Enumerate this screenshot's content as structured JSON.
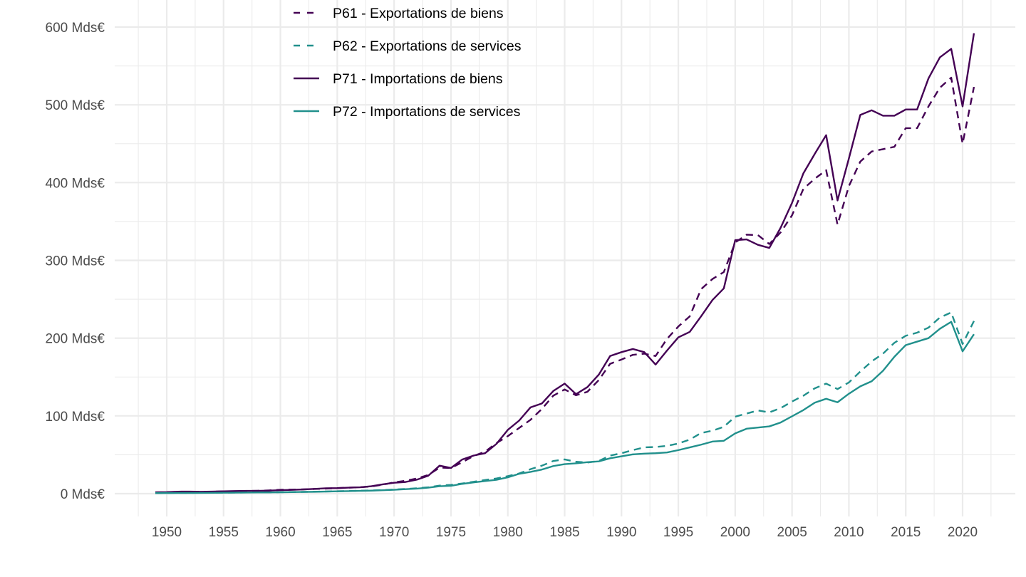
{
  "chart_data": {
    "type": "line",
    "title": "",
    "xlabel": "",
    "ylabel": "",
    "xlim": [
      1945.4,
      2024.6
    ],
    "ylim": [
      -30,
      618
    ],
    "grid": true,
    "legend_position": "top-left-inside",
    "x_ticks": [
      1950,
      1955,
      1960,
      1965,
      1970,
      1975,
      1980,
      1985,
      1990,
      1995,
      2000,
      2005,
      2010,
      2015,
      2020
    ],
    "x_tick_labels": [
      "1950",
      "1955",
      "1960",
      "1965",
      "1970",
      "1975",
      "1980",
      "1985",
      "1990",
      "1995",
      "2000",
      "2005",
      "2010",
      "2015",
      "2020"
    ],
    "y_ticks": [
      0,
      100,
      200,
      300,
      400,
      500,
      600
    ],
    "y_tick_labels": [
      "0 Mds€",
      "100 Mds€",
      "200 Mds€",
      "300 Mds€",
      "400 Mds€",
      "500 Mds€",
      "600 Mds€"
    ],
    "x": [
      1949,
      1950,
      1951,
      1952,
      1953,
      1954,
      1955,
      1956,
      1957,
      1958,
      1959,
      1960,
      1961,
      1962,
      1963,
      1964,
      1965,
      1966,
      1967,
      1968,
      1969,
      1970,
      1971,
      1972,
      1973,
      1974,
      1975,
      1976,
      1977,
      1978,
      1979,
      1980,
      1981,
      1982,
      1983,
      1984,
      1985,
      1986,
      1987,
      1988,
      1989,
      1990,
      1991,
      1992,
      1993,
      1994,
      1995,
      1996,
      1997,
      1998,
      1999,
      2000,
      2001,
      2002,
      2003,
      2004,
      2005,
      2006,
      2007,
      2008,
      2009,
      2010,
      2011,
      2012,
      2013,
      2014,
      2015,
      2016,
      2017,
      2018,
      2019,
      2020,
      2021
    ],
    "series": [
      {
        "name": "P61 - Exportations de biens",
        "color": "#440154",
        "dash": "dashed",
        "values": [
          1.5,
          1.8,
          2.4,
          2.5,
          2.4,
          2.6,
          3.0,
          3.0,
          3.4,
          3.7,
          4.2,
          5.0,
          5.2,
          5.5,
          6.0,
          6.5,
          7.1,
          7.7,
          8.2,
          9.3,
          11.5,
          14.5,
          16.5,
          19.5,
          24.0,
          33.5,
          33.0,
          40.5,
          48.5,
          54.0,
          65.0,
          74.0,
          84.5,
          95.0,
          109.0,
          126.0,
          134.0,
          126.5,
          131.0,
          146.0,
          167.0,
          172.5,
          178.5,
          180.0,
          177.0,
          199.0,
          215.0,
          228.0,
          263.0,
          276.0,
          285.0,
          323.0,
          333.0,
          332.5,
          321.0,
          336.0,
          358.0,
          392.0,
          405.0,
          416.0,
          346.0,
          395.5,
          427.0,
          440.0,
          443.0,
          446.0,
          470.0,
          470.0,
          498.0,
          522.0,
          535.0,
          450.0,
          523.0
        ]
      },
      {
        "name": "P62 - Exportations de services",
        "color": "#21908C",
        "dash": "dashed",
        "values": [
          0.8,
          0.9,
          1.0,
          1.0,
          1.1,
          1.2,
          1.3,
          1.4,
          1.5,
          1.6,
          1.7,
          1.9,
          2.1,
          2.3,
          2.5,
          2.8,
          3.1,
          3.4,
          3.8,
          4.1,
          4.6,
          5.3,
          6.1,
          6.9,
          8.2,
          10.4,
          11.3,
          13.1,
          15.3,
          17.6,
          19.5,
          22.5,
          26.0,
          31.5,
          36.0,
          42.0,
          44.0,
          41.0,
          40.0,
          42.0,
          49.0,
          52.0,
          56.0,
          59.5,
          60.0,
          61.5,
          64.5,
          69.5,
          78.0,
          81.0,
          86.0,
          99.0,
          103.0,
          107.0,
          104.5,
          110.0,
          118.5,
          126.0,
          135.5,
          141.5,
          134.5,
          143.0,
          157.0,
          170.0,
          180.0,
          194.0,
          203.0,
          207.0,
          213.5,
          226.5,
          233.0,
          192.5,
          222.0
        ]
      },
      {
        "name": "P71 - Importations de biens",
        "color": "#440154",
        "dash": "solid",
        "values": [
          1.8,
          2.0,
          2.6,
          2.7,
          2.5,
          2.7,
          3.0,
          3.4,
          3.6,
          3.6,
          3.9,
          4.5,
          4.9,
          5.4,
          6.1,
          6.9,
          7.1,
          7.7,
          8.2,
          9.6,
          12.0,
          14.0,
          15.0,
          18.0,
          23.0,
          36.0,
          33.0,
          44.0,
          49.0,
          52.0,
          64.0,
          82.0,
          94.0,
          111.0,
          116.0,
          132.0,
          141.5,
          128.0,
          137.0,
          153.0,
          177.0,
          182.0,
          186.0,
          182.0,
          166.0,
          184.0,
          201.0,
          208.0,
          228.0,
          249.0,
          264.0,
          326.0,
          327.0,
          320.0,
          316.0,
          342.0,
          374.0,
          412.0,
          437.0,
          461.0,
          377.0,
          431.0,
          487.0,
          493.0,
          486.0,
          486.0,
          494.0,
          494.0,
          534.0,
          561.0,
          572.0,
          498.0,
          592.0
        ]
      },
      {
        "name": "P72 - Importations de services",
        "color": "#21908C",
        "dash": "solid",
        "values": [
          0.7,
          0.8,
          0.9,
          0.9,
          1.0,
          1.1,
          1.2,
          1.3,
          1.4,
          1.5,
          1.6,
          1.8,
          2.0,
          2.2,
          2.4,
          2.7,
          3.0,
          3.3,
          3.6,
          3.9,
          4.4,
          5.0,
          5.8,
          6.5,
          7.7,
          9.6,
          10.1,
          12.6,
          14.5,
          16.2,
          17.8,
          21.0,
          25.5,
          28.0,
          31.0,
          35.5,
          38.0,
          39.0,
          40.5,
          41.5,
          45.5,
          48.0,
          50.5,
          51.5,
          52.0,
          53.0,
          56.0,
          59.5,
          63.0,
          67.0,
          68.0,
          77.5,
          83.5,
          85.0,
          86.5,
          91.5,
          99.5,
          107.5,
          117.0,
          122.0,
          117.5,
          128.5,
          138.0,
          144.5,
          158.0,
          176.0,
          191.0,
          195.5,
          200.0,
          212.0,
          221.0,
          183.0,
          205.0
        ]
      }
    ]
  }
}
